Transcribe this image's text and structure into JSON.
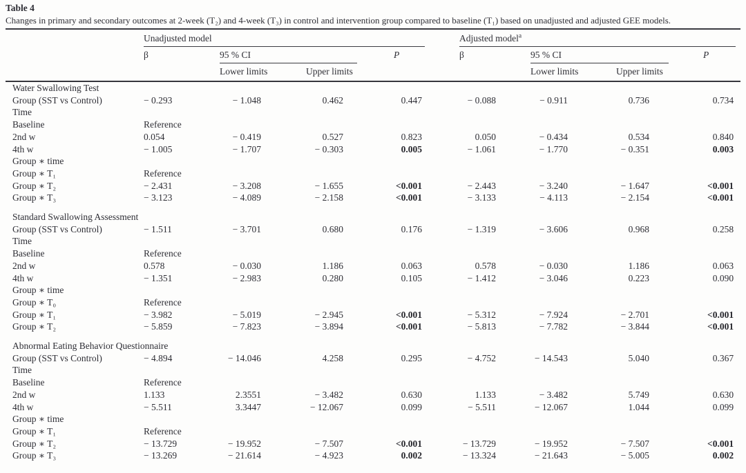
{
  "title": "Table 4",
  "caption": "Changes in primary and secondary outcomes at 2-week (T₂) and 4-week (T₃) in control and intervention group compared to baseline (T₁) based on unadjusted and adjusted GEE models.",
  "colors": {
    "text": "#2e2e35",
    "rule": "#3a3a40",
    "background": "#fdfdfc"
  },
  "header": {
    "unadjusted": "Unadjusted model",
    "adjusted": "Adjusted model",
    "adjusted_sup": "a",
    "beta": "β",
    "ci": "95 % CI",
    "p": "P",
    "lower": "Lower limits",
    "upper": "Upper limits"
  },
  "columns_order": [
    "beta",
    "lower_limit",
    "upper_limit",
    "p",
    "beta",
    "lower_limit",
    "upper_limit",
    "p"
  ],
  "sections": [
    {
      "name": "Water Swallowing Test",
      "rows": [
        {
          "label": "Group (SST vs Control)",
          "cells": [
            "− 0.293",
            "− 1.048",
            "0.462",
            "0.447",
            "− 0.088",
            "− 0.911",
            "0.736",
            "0.734"
          ],
          "p_bold": false
        },
        {
          "label": "Time",
          "cells": [
            "",
            "",
            "",
            "",
            "",
            "",
            "",
            ""
          ],
          "p_bold": false
        },
        {
          "label": "Baseline",
          "cells": [
            "Reference",
            "",
            "",
            "",
            "",
            "",
            "",
            ""
          ],
          "p_bold": false
        },
        {
          "label": "2nd w",
          "cells": [
            "0.054",
            "− 0.419",
            "0.527",
            "0.823",
            "0.050",
            "− 0.434",
            "0.534",
            "0.840"
          ],
          "p_bold": false
        },
        {
          "label": "4th w",
          "cells": [
            "− 1.005",
            "− 1.707",
            "− 0.303",
            "0.005",
            "− 1.061",
            "− 1.770",
            "− 0.351",
            "0.003"
          ],
          "p_bold": true
        },
        {
          "label": "Group ∗ time",
          "cells": [
            "",
            "",
            "",
            "",
            "",
            "",
            "",
            ""
          ],
          "p_bold": false
        },
        {
          "label": "Group ∗ T₁",
          "cells": [
            "Reference",
            "",
            "",
            "",
            "",
            "",
            "",
            ""
          ],
          "p_bold": false
        },
        {
          "label": "Group ∗ T₂",
          "cells": [
            "− 2.431",
            "− 3.208",
            "− 1.655",
            "<0.001",
            "− 2.443",
            "− 3.240",
            "− 1.647",
            "<0.001"
          ],
          "p_bold": true
        },
        {
          "label": "Group ∗ T₃",
          "cells": [
            "− 3.123",
            "− 4.089",
            "− 2.158",
            "<0.001",
            "− 3.133",
            "− 4.113",
            "− 2.154",
            "<0.001"
          ],
          "p_bold": true
        }
      ]
    },
    {
      "name": "Standard Swallowing Assessment",
      "rows": [
        {
          "label": "Group (SST vs Control)",
          "cells": [
            "− 1.511",
            "− 3.701",
            "0.680",
            "0.176",
            "− 1.319",
            "− 3.606",
            "0.968",
            "0.258"
          ],
          "p_bold": false
        },
        {
          "label": "Time",
          "cells": [
            "",
            "",
            "",
            "",
            "",
            "",
            "",
            ""
          ],
          "p_bold": false
        },
        {
          "label": "Baseline",
          "cells": [
            "Reference",
            "",
            "",
            "",
            "",
            "",
            "",
            ""
          ],
          "p_bold": false
        },
        {
          "label": "2nd w",
          "cells": [
            "0.578",
            "− 0.030",
            "1.186",
            "0.063",
            "0.578",
            "− 0.030",
            "1.186",
            "0.063"
          ],
          "p_bold": false
        },
        {
          "label": "4th w",
          "cells": [
            "− 1.351",
            "− 2.983",
            "0.280",
            "0.105",
            "− 1.412",
            "− 3.046",
            "0.223",
            "0.090"
          ],
          "p_bold": false
        },
        {
          "label": "Group ∗ time",
          "cells": [
            "",
            "",
            "",
            "",
            "",
            "",
            "",
            ""
          ],
          "p_bold": false
        },
        {
          "label": "Group ∗ T₀",
          "cells": [
            "Reference",
            "",
            "",
            "",
            "",
            "",
            "",
            ""
          ],
          "p_bold": false
        },
        {
          "label": "Group ∗ T₁",
          "cells": [
            "− 3.982",
            "− 5.019",
            "− 2.945",
            "<0.001",
            "− 5.312",
            "− 7.924",
            "− 2.701",
            "<0.001"
          ],
          "p_bold": true
        },
        {
          "label": "Group ∗ T₂",
          "cells": [
            "− 5.859",
            "− 7.823",
            "− 3.894",
            "<0.001",
            "− 5.813",
            "− 7.782",
            "− 3.844",
            "<0.001"
          ],
          "p_bold": true
        }
      ]
    },
    {
      "name": "Abnormal Eating Behavior Questionnaire",
      "rows": [
        {
          "label": "Group (SST vs Control)",
          "cells": [
            "− 4.894",
            "− 14.046",
            "4.258",
            "0.295",
            "− 4.752",
            "− 14.543",
            "5.040",
            "0.367"
          ],
          "p_bold": false
        },
        {
          "label": "Time",
          "cells": [
            "",
            "",
            "",
            "",
            "",
            "",
            "",
            ""
          ],
          "p_bold": false
        },
        {
          "label": "Baseline",
          "cells": [
            "Reference",
            "",
            "",
            "",
            "",
            "",
            "",
            ""
          ],
          "p_bold": false
        },
        {
          "label": "2nd w",
          "cells": [
            "1.133",
            "2.3551",
            "− 3.482",
            "0.630",
            "1.133",
            "− 3.482",
            "5.749",
            "0.630"
          ],
          "p_bold": false
        },
        {
          "label": "4th w",
          "cells": [
            "− 5.511",
            "3.3447",
            "− 12.067",
            "0.099",
            "− 5.511",
            "− 12.067",
            "1.044",
            "0.099"
          ],
          "p_bold": false
        },
        {
          "label": "Group ∗ time",
          "cells": [
            "",
            "",
            "",
            "",
            "",
            "",
            "",
            ""
          ],
          "p_bold": false
        },
        {
          "label": "Group ∗ T₁",
          "cells": [
            "Reference",
            "",
            "",
            "",
            "",
            "",
            "",
            ""
          ],
          "p_bold": false
        },
        {
          "label": "Group ∗ T₂",
          "cells": [
            "− 13.729",
            "− 19.952",
            "− 7.507",
            "<0.001",
            "− 13.729",
            "− 19.952",
            "− 7.507",
            "<0.001"
          ],
          "p_bold": true
        },
        {
          "label": "Group ∗ T₃",
          "cells": [
            "− 13.269",
            "− 21.614",
            "− 4.923",
            "0.002",
            "− 13.324",
            "− 21.643",
            "− 5.005",
            "0.002"
          ],
          "p_bold": true
        }
      ]
    }
  ]
}
